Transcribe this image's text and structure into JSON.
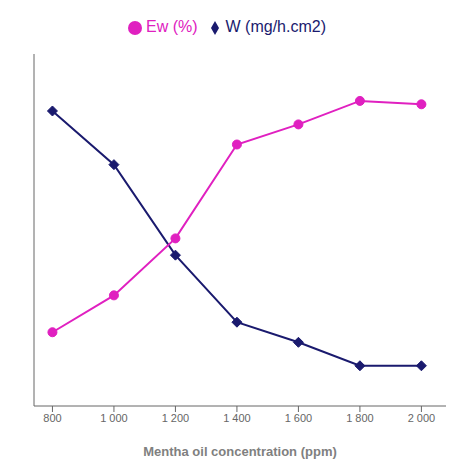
{
  "chart_data": {
    "type": "line",
    "x": [
      800,
      1000,
      1200,
      1400,
      1600,
      1800,
      2000
    ],
    "series": [
      {
        "name": "W (mg/h.cm2)",
        "color": "#1a1a6e",
        "marker": "diamond",
        "values": [
          0.88,
          0.72,
          0.45,
          0.25,
          0.19,
          0.12,
          0.12
        ]
      },
      {
        "name": "Ew (%)",
        "color": "#e020c0",
        "marker": "circle",
        "values": [
          0.22,
          0.33,
          0.5,
          0.78,
          0.84,
          0.91,
          0.9
        ]
      }
    ],
    "x_label": "Mentha oil concentration (ppm)",
    "xlim": [
      740,
      2080
    ],
    "xticks": [
      800,
      {
        "value": 1000,
        "label": "1 000"
      },
      {
        "value": 1200,
        "label": "1 200"
      },
      {
        "value": 1400,
        "label": "1 400"
      },
      {
        "value": 1600,
        "label": "1 600"
      },
      {
        "value": 1800,
        "label": "1 800"
      },
      {
        "value": 2000,
        "label": "2 000"
      }
    ],
    "ylim": [
      0,
      1.05
    ],
    "yticks": [
      0,
      0.2,
      0.4,
      0.6,
      0.8,
      1.0
    ],
    "tick_labels": "x",
    "grid": false,
    "legend": "top"
  }
}
